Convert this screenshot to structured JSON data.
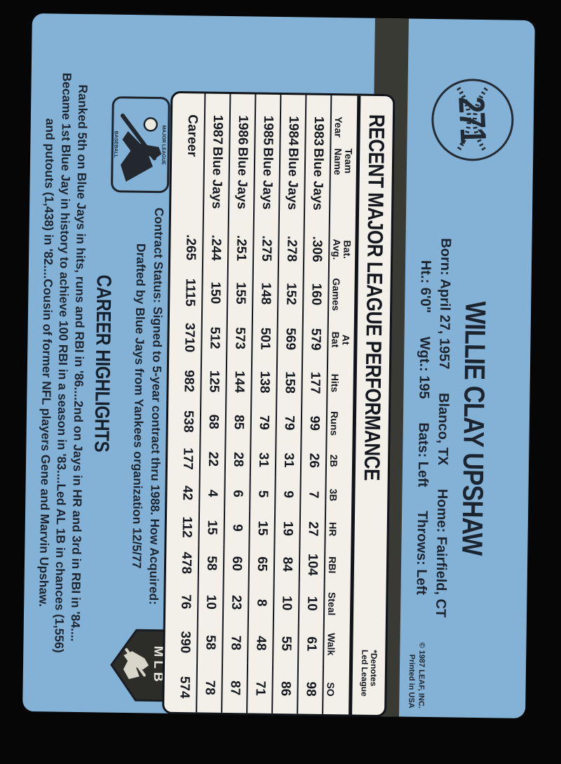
{
  "card": {
    "number": "271",
    "player_name": "WILLIE CLAY UPSHAW",
    "bio_line1": [
      "Born: April 27, 1957",
      "Blanco, TX",
      "Home: Fairfield, CT"
    ],
    "bio_line2": [
      "Ht.: 6'0\"",
      "Wgt.: 195",
      "Bats: Left",
      "Throws: Left"
    ],
    "copyright_line1": "© 1987 LEAF, INC.",
    "copyright_line2": "Printed in USA",
    "stats": {
      "title": "RECENT MAJOR LEAGUE PERFORMANCE",
      "denotes_line1": "*Denotes",
      "denotes_line2": "Led League",
      "columns": [
        "Year",
        "Team|Name",
        "Bat.|Avg.",
        "Games",
        "At|Bat",
        "Hits",
        "Runs",
        "2B",
        "3B",
        "HR",
        "RBI",
        "Steal",
        "Walk",
        "SO"
      ],
      "rows": [
        [
          "1983",
          "Blue Jays",
          ".306",
          "160",
          "579",
          "177",
          "99",
          "26",
          "7",
          "27",
          "104",
          "10",
          "61",
          "98"
        ],
        [
          "1984",
          "Blue Jays",
          ".278",
          "152",
          "569",
          "158",
          "79",
          "31",
          "9",
          "19",
          "84",
          "10",
          "55",
          "86"
        ],
        [
          "1985",
          "Blue Jays",
          ".275",
          "148",
          "501",
          "138",
          "79",
          "31",
          "5",
          "15",
          "65",
          "8",
          "48",
          "71"
        ],
        [
          "1986",
          "Blue Jays",
          ".251",
          "155",
          "573",
          "144",
          "85",
          "28",
          "6",
          "9",
          "60",
          "23",
          "78",
          "87"
        ],
        [
          "1987",
          "Blue Jays",
          ".244",
          "150",
          "512",
          "125",
          "68",
          "22",
          "4",
          "15",
          "58",
          "10",
          "58",
          "78"
        ],
        [
          "Career",
          "",
          ".265",
          "1115",
          "3710",
          "982",
          "538",
          "177",
          "42",
          "112",
          "478",
          "76",
          "390",
          "574"
        ]
      ]
    },
    "contract_line1": "Contract Status: Signed to 5-year contract thru 1988. How Acquired:",
    "contract_line2": "Drafted by Blue Jays from Yankees organization 12/5/77",
    "highlights_title": "CAREER HIGHLIGHTS",
    "highlights": [
      "Ranked 5th on Blue Jays in hits, runs and RBI in '86....2nd on Jays in HR and 3rd in RBI in '84....",
      "Became 1st Blue Jay in history to achieve 100 RBI in a season in '83....Led AL 1B in chances (1,556)",
      "and putouts (1,438) in '82....Cousin of former NFL players Gene and Marvin Upshaw."
    ],
    "logos": {
      "mlb_label": "MLB",
      "mlb_top_text": "MAJOR LEAGUE",
      "mlb_bottom_text": "BASEBALL"
    },
    "colors": {
      "card_blue": "#83b2d6",
      "box_cream": "#f2f0e9",
      "band_dark": "#3a3a35",
      "ink": "#1e2630",
      "background": "#060606"
    }
  }
}
